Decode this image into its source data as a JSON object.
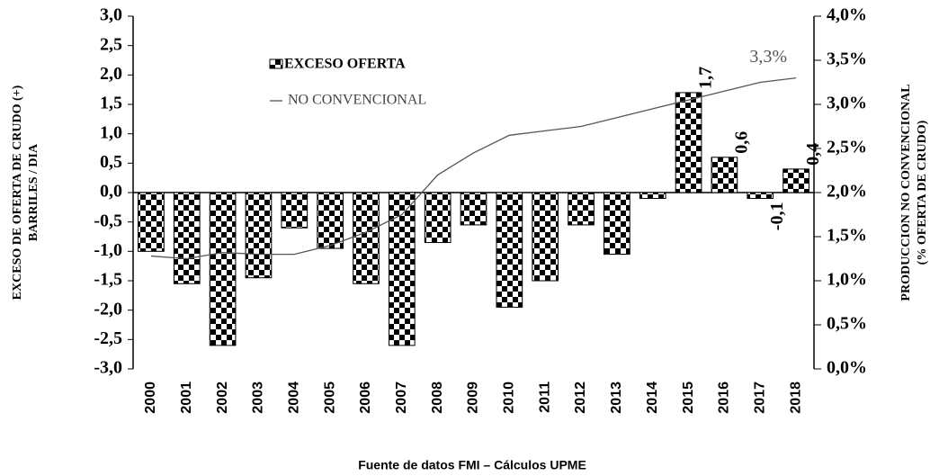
{
  "chart_data": {
    "type": "bar-line",
    "categories": [
      "2000",
      "2001",
      "2002",
      "2003",
      "2004",
      "2005",
      "2006",
      "2007",
      "2008",
      "2009",
      "2010",
      "2011",
      "2012",
      "2013",
      "2014",
      "2015",
      "2016",
      "2017",
      "2018"
    ],
    "series": [
      {
        "name": "EXCESO OFERTA",
        "type": "bar",
        "color": "#000000",
        "values": [
          -1.0,
          -1.55,
          -2.6,
          -1.45,
          -0.6,
          -0.95,
          -1.55,
          -2.6,
          -0.85,
          -0.55,
          -1.95,
          -1.5,
          -0.55,
          -1.05,
          -0.1,
          1.7,
          0.6,
          -0.1,
          0.4
        ],
        "value_labels": [
          null,
          null,
          null,
          null,
          null,
          null,
          null,
          null,
          null,
          null,
          null,
          null,
          null,
          null,
          null,
          "1,7",
          "0,6",
          "-0,1",
          "0,4"
        ]
      },
      {
        "name": "NO CONVENCIONAL",
        "type": "line",
        "axis": "y2",
        "color": "#555555",
        "values": [
          1.28,
          1.25,
          1.32,
          1.3,
          1.3,
          1.4,
          1.55,
          1.75,
          2.2,
          2.45,
          2.65,
          2.7,
          2.75,
          2.85,
          2.95,
          3.05,
          3.15,
          3.25,
          3.3
        ],
        "value_labels": [
          null,
          null,
          null,
          null,
          null,
          null,
          null,
          null,
          null,
          null,
          null,
          null,
          null,
          null,
          null,
          null,
          null,
          null,
          "3,3%"
        ]
      }
    ],
    "ylabel": [
      "EXCESO DE OFERTA DE CRUDO (+)",
      "BARRILES / DIA"
    ],
    "y2label": [
      "PRODUCCION NO CONVENCIONAL",
      "(% OFERTA DE CRUDO)"
    ],
    "xlabel": "Fuente de datos    FMI – Cálculos UPME",
    "ylim": [
      -3,
      3
    ],
    "yticks": [
      {
        "value": -3,
        "label": "-3,0"
      },
      {
        "value": -2.5,
        "label": "-2,5"
      },
      {
        "value": -2,
        "label": "-2,0"
      },
      {
        "value": -1.5,
        "label": "-1,5"
      },
      {
        "value": -1,
        "label": "-1,0"
      },
      {
        "value": -0.5,
        "label": "-0,5"
      },
      {
        "value": 0,
        "label": "0,0"
      },
      {
        "value": 0.5,
        "label": "0,5"
      },
      {
        "value": 1,
        "label": "1,0"
      },
      {
        "value": 1.5,
        "label": "1,5"
      },
      {
        "value": 2,
        "label": "2,0"
      },
      {
        "value": 2.5,
        "label": "2,5"
      },
      {
        "value": 3,
        "label": "3,0"
      }
    ],
    "y2lim": [
      0,
      4
    ],
    "y2ticks": [
      {
        "value": 0,
        "label": "0,0%"
      },
      {
        "value": 0.5,
        "label": "0,5%"
      },
      {
        "value": 1,
        "label": "1,0%"
      },
      {
        "value": 1.5,
        "label": "1,5%"
      },
      {
        "value": 2,
        "label": "2,0%"
      },
      {
        "value": 2.5,
        "label": "2,5%"
      },
      {
        "value": 3,
        "label": "3,0%"
      },
      {
        "value": 3.5,
        "label": "3,5%"
      },
      {
        "value": 4,
        "label": "4,0%"
      }
    ],
    "grid": false
  }
}
